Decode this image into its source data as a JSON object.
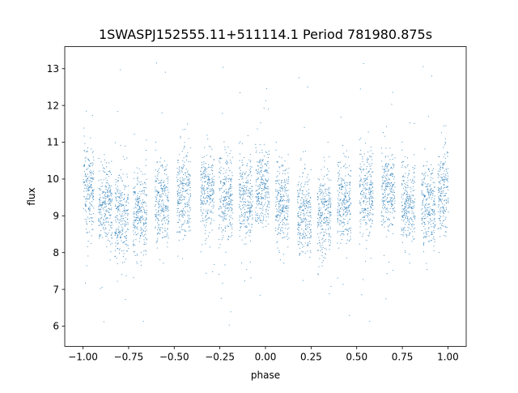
{
  "chart_data": {
    "type": "scatter",
    "title": "1SWASPJ152555.11+511114.1 Period 781980.875s",
    "xlabel": "phase",
    "ylabel": "flux",
    "xlim": [
      -1.1,
      1.1
    ],
    "ylim": [
      5.45,
      13.6
    ],
    "x_ticks": [
      -1.0,
      -0.75,
      -0.5,
      -0.25,
      0.0,
      0.25,
      0.5,
      0.75,
      1.0
    ],
    "x_tick_labels": [
      "−1.00",
      "−0.75",
      "−0.50",
      "−0.25",
      "0.00",
      "0.25",
      "0.50",
      "0.75",
      "1.00"
    ],
    "y_ticks": [
      6,
      7,
      8,
      9,
      10,
      11,
      12,
      13
    ],
    "y_tick_labels": [
      "6",
      "7",
      "8",
      "9",
      "10",
      "11",
      "12",
      "13"
    ],
    "grid": false,
    "legend": "none",
    "marker_color": "#1f77b4",
    "series": [
      {
        "clusters_x": [
          -0.98,
          -0.88,
          -0.79,
          -0.69,
          -0.57,
          -0.45,
          -0.32,
          -0.22,
          -0.11,
          -0.02,
          0.09,
          0.21,
          0.32,
          0.43,
          0.55,
          0.67,
          0.78,
          0.89,
          0.98
        ],
        "clusters_center_y": [
          9.8,
          9.3,
          9.0,
          9.1,
          9.4,
          9.6,
          9.7,
          9.5,
          9.5,
          9.8,
          9.4,
          9.0,
          9.1,
          9.4,
          9.6,
          9.7,
          9.4,
          9.3,
          9.7
        ],
        "flux_range": [
          5.8,
          13.2
        ]
      }
    ]
  }
}
